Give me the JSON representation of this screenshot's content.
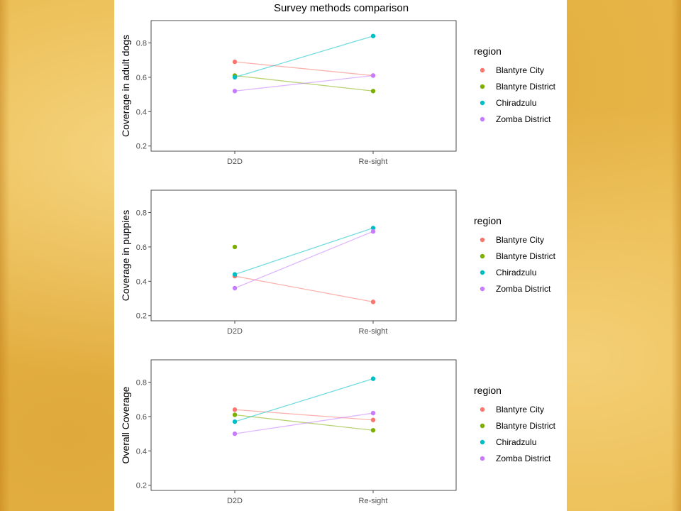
{
  "chart_data": {
    "type": "line",
    "title": "Survey methods comparison",
    "categories": [
      "D2D",
      "Re-sight"
    ],
    "ylim": [
      0.17,
      0.93
    ],
    "yticks": [
      0.2,
      0.4,
      0.6,
      0.8
    ],
    "grid": false,
    "legend_title": "region",
    "legend_placement": "right",
    "regions": [
      {
        "name": "Blantyre City",
        "color": "#F8766D"
      },
      {
        "name": "Blantyre District",
        "color": "#7CAE00"
      },
      {
        "name": "Chiradzulu",
        "color": "#00BFC4"
      },
      {
        "name": "Zomba District",
        "color": "#C77CFF"
      }
    ],
    "panels": [
      {
        "ylabel": "Coverage in adult dogs",
        "series": [
          {
            "name": "Blantyre City",
            "values": [
              0.69,
              0.61
            ]
          },
          {
            "name": "Blantyre District",
            "values": [
              0.61,
              0.52
            ]
          },
          {
            "name": "Chiradzulu",
            "values": [
              0.6,
              0.84
            ]
          },
          {
            "name": "Zomba District",
            "values": [
              0.52,
              0.61
            ]
          }
        ]
      },
      {
        "ylabel": "Coverage in puppies",
        "series": [
          {
            "name": "Blantyre City",
            "values": [
              0.43,
              0.28
            ]
          },
          {
            "name": "Blantyre District",
            "values": [
              0.6,
              null
            ]
          },
          {
            "name": "Chiradzulu",
            "values": [
              0.44,
              0.71
            ]
          },
          {
            "name": "Zomba District",
            "values": [
              0.36,
              0.69
            ]
          }
        ]
      },
      {
        "ylabel": "Overall Coverage",
        "series": [
          {
            "name": "Blantyre City",
            "values": [
              0.64,
              0.58
            ]
          },
          {
            "name": "Blantyre District",
            "values": [
              0.61,
              0.52
            ]
          },
          {
            "name": "Chiradzulu",
            "values": [
              0.57,
              0.82
            ]
          },
          {
            "name": "Zomba District",
            "values": [
              0.5,
              0.62
            ]
          }
        ]
      }
    ]
  }
}
